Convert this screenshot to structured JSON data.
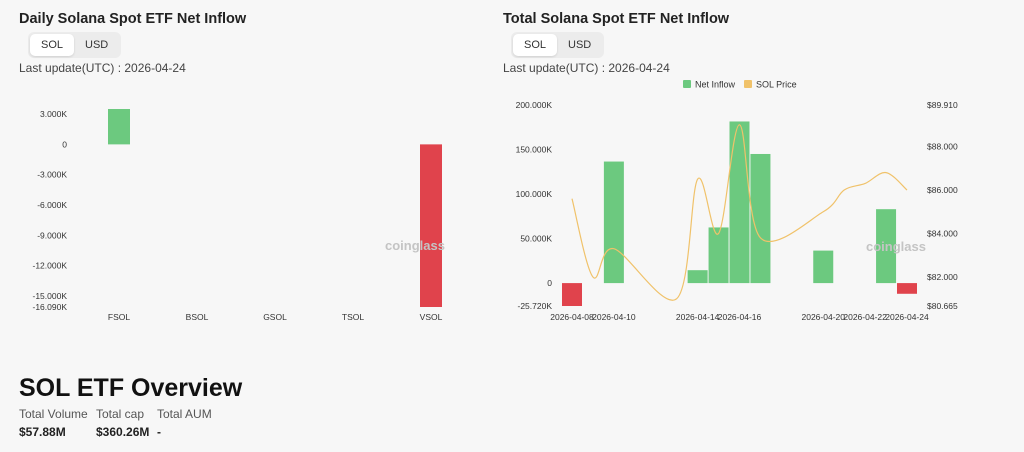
{
  "left_panel": {
    "title": "Daily Solana Spot ETF Net Inflow",
    "toggle": [
      "SOL",
      "USD"
    ],
    "last_update": "Last update(UTC) : 2026-04-24"
  },
  "right_panel": {
    "title": "Total Solana Spot ETF Net Inflow",
    "toggle": [
      "SOL",
      "USD"
    ],
    "last_update": "Last update(UTC) : 2026-04-24"
  },
  "watermark": "coinglass",
  "colors": {
    "positive": "#6cc97f",
    "negative": "#e0434c",
    "price": "#f0c26a"
  },
  "chart_data": [
    {
      "type": "bar",
      "categories": [
        "FSOL",
        "BSOL",
        "GSOL",
        "TSOL",
        "VSOL"
      ],
      "values": [
        3.5,
        0,
        0,
        0,
        -16.09
      ],
      "ylim": [
        -16.09,
        3.5
      ],
      "yticks": [
        "3.000K",
        "0",
        "-3.000K",
        "-6.000K",
        "-9.000K",
        "-12.000K",
        "-15.000K",
        "-16.090K"
      ],
      "ytick_values": [
        3,
        0,
        -3,
        -6,
        -9,
        -12,
        -15,
        -16.09
      ]
    },
    {
      "type": "bar",
      "x": [
        "2026-04-08",
        "2026-04-09",
        "2026-04-10",
        "2026-04-13",
        "2026-04-14",
        "2026-04-15",
        "2026-04-16",
        "2026-04-17",
        "2026-04-20",
        "2026-04-21",
        "2026-04-22",
        "2026-04-23",
        "2026-04-24"
      ],
      "xticks": [
        "2026-04-08",
        "2026-04-10",
        "2026-04-14",
        "2026-04-16",
        "2026-04-20",
        "2026-04-22",
        "2026-04-24"
      ],
      "series": [
        {
          "name": "Net Inflow",
          "values": [
            -25.72,
            null,
            136.5,
            null,
            14.5,
            62.5,
            181.5,
            145.0,
            36.5,
            null,
            null,
            83.0,
            -12.0
          ]
        },
        {
          "name": "SOL Price",
          "values": [
            85.6,
            82.0,
            83.3,
            81.0,
            86.5,
            84.0,
            89.0,
            83.8,
            85.0,
            86.0,
            86.3,
            86.8,
            86.0
          ]
        }
      ],
      "ylim_left": [
        -25.72,
        200
      ],
      "yticks_left": [
        "200.000K",
        "150.000K",
        "100.000K",
        "50.000K",
        "0",
        "-25.720K"
      ],
      "ytick_left_values": [
        200,
        150,
        100,
        50,
        0,
        -25.72
      ],
      "ylim_right": [
        80.665,
        89.91
      ],
      "yticks_right": [
        "$89.910",
        "$88.000",
        "$86.000",
        "$84.000",
        "$82.000",
        "$80.665"
      ],
      "ytick_right_values": [
        89.91,
        88,
        86,
        84,
        82,
        80.665
      ],
      "legend": [
        "Net Inflow",
        "SOL Price"
      ],
      "legend_position": "top"
    }
  ],
  "overview": {
    "title": "SOL ETF Overview",
    "stats": [
      {
        "label": "Total Volume",
        "value": "$57.88M"
      },
      {
        "label": "Total cap",
        "value": "$360.26M"
      },
      {
        "label": "Total AUM",
        "value": "-"
      }
    ]
  }
}
